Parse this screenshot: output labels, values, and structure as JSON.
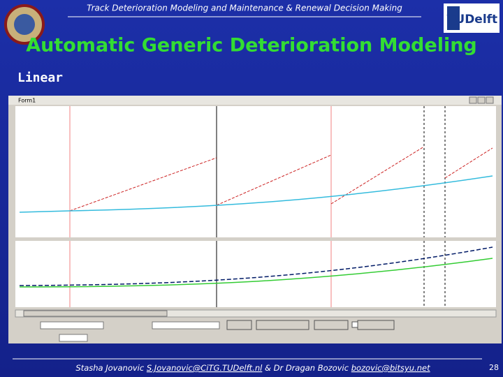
{
  "header": {
    "text": "Track Deterioration Modeling and Maintenance & Renewal Decision Making",
    "logo": "TUDelft"
  },
  "title": "Automatic Generic Deterioration Modeling",
  "subtitle": "Linear",
  "window": {
    "title": "Form1"
  },
  "footer": {
    "author1": "Stasha Jovanovic",
    "email1": "S.Jovanovic@CiTG.TUDelft.nl",
    "connector": "& Dr Dragan Bozovic",
    "email2": "bozovic@bitsyu.net",
    "page": "28"
  }
}
